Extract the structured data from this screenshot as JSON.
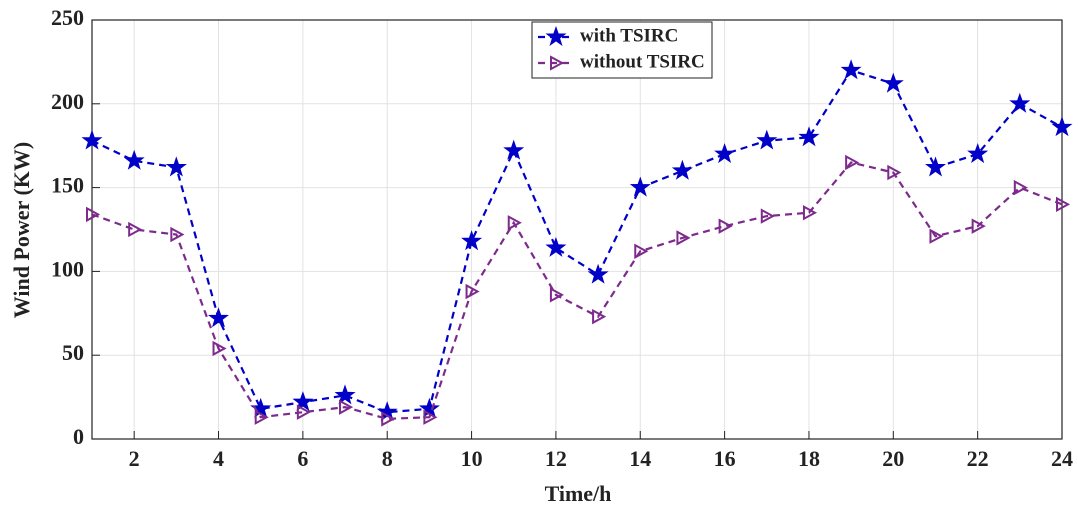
{
  "chart_data": {
    "type": "line",
    "xlabel": "Time/h",
    "ylabel": "Wind Power (KW)",
    "x": [
      1,
      2,
      3,
      4,
      5,
      6,
      7,
      8,
      9,
      10,
      11,
      12,
      13,
      14,
      15,
      16,
      17,
      18,
      19,
      20,
      21,
      22,
      23,
      24
    ],
    "series": [
      {
        "name": "with TSIRC",
        "color": "#0000c8",
        "marker": "star",
        "linestyle": "dashed",
        "values": [
          178,
          166,
          162,
          72,
          18,
          22,
          26,
          16,
          18,
          118,
          172,
          114,
          98,
          150,
          160,
          170,
          178,
          180,
          220,
          212,
          162,
          170,
          200,
          186
        ]
      },
      {
        "name": "without TSIRC",
        "color": "#7d2a8c",
        "marker": "triangle-right",
        "linestyle": "dashed",
        "values": [
          134,
          125,
          122,
          54,
          13,
          16,
          19,
          12,
          13,
          88,
          129,
          86,
          73,
          112,
          120,
          127,
          133,
          135,
          165,
          159,
          121,
          127,
          150,
          140
        ]
      }
    ],
    "xlim": [
      1,
      24
    ],
    "xticks": [
      2,
      4,
      6,
      8,
      10,
      12,
      14,
      16,
      18,
      20,
      22,
      24
    ],
    "ylim": [
      0,
      250
    ],
    "yticks": [
      0,
      50,
      100,
      150,
      200,
      250
    ],
    "grid": true,
    "legend": "upper center"
  }
}
